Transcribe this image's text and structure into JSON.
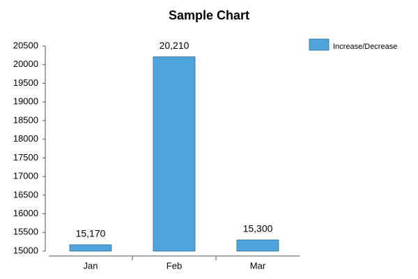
{
  "chart_data": {
    "type": "bar",
    "title": "Sample Chart",
    "categories": [
      "Jan",
      "Feb",
      "Mar"
    ],
    "series": [
      {
        "name": "Increase/Decrease",
        "color": "#4fa5db",
        "values": [
          15170,
          20210,
          15300
        ],
        "value_labels": [
          "15,170",
          "20,210",
          "15,300"
        ]
      }
    ],
    "ylim": [
      15000,
      20500
    ],
    "yticks": [
      15000,
      15500,
      16000,
      16500,
      17000,
      17500,
      18000,
      18500,
      19000,
      19500,
      20000,
      20500
    ],
    "grid": false,
    "legend": "top-right"
  }
}
